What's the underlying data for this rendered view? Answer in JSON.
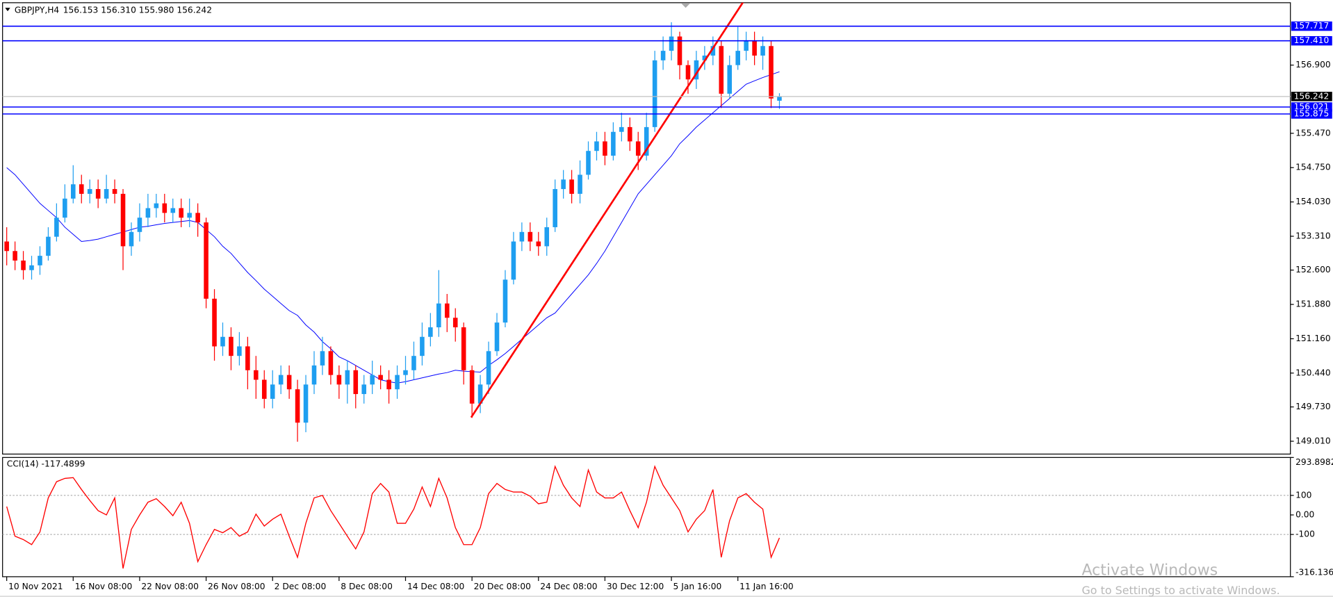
{
  "chart_data": [
    {
      "type": "candlestick",
      "title": "GBPJPY,H4",
      "quote": "156.153 156.310 155.980 156.242",
      "open": [
        153.2,
        153.0,
        152.8,
        152.6,
        152.7,
        152.9,
        153.3,
        153.7,
        154.1,
        154.4,
        154.2,
        154.3,
        154.1,
        154.3,
        154.2,
        153.1,
        153.4,
        153.7,
        153.9,
        154.0,
        153.8,
        153.9,
        153.7,
        153.8,
        153.6,
        152.0,
        151.0,
        151.2,
        150.8,
        151.0,
        150.5,
        150.3,
        149.9,
        150.2,
        150.4,
        150.1,
        149.4,
        150.2,
        150.6,
        150.9,
        150.4,
        150.2,
        150.5,
        150.0,
        150.2,
        150.4,
        150.3,
        150.1,
        150.4,
        150.5,
        150.8,
        151.2,
        151.4,
        151.9,
        151.6,
        151.4,
        150.5,
        149.8,
        150.2,
        150.9,
        151.5,
        152.4,
        153.2,
        153.4,
        153.2,
        153.1,
        153.5,
        154.3,
        154.5,
        154.2,
        154.6,
        155.1,
        155.3,
        155.0,
        155.5,
        155.6,
        155.3,
        155.0,
        155.6,
        157.0,
        157.2,
        157.5,
        156.9,
        156.6,
        157.0,
        157.1,
        157.3,
        156.3,
        156.9,
        157.2,
        157.4,
        157.1,
        157.3,
        156.153
      ],
      "high": [
        153.5,
        153.2,
        153.0,
        152.9,
        153.1,
        153.5,
        154.0,
        154.4,
        154.8,
        154.6,
        154.5,
        154.5,
        154.6,
        154.5,
        154.3,
        153.6,
        154.0,
        154.2,
        154.2,
        154.2,
        154.1,
        154.1,
        154.1,
        154.0,
        153.7,
        152.2,
        151.5,
        151.4,
        151.3,
        151.2,
        150.8,
        150.5,
        150.5,
        150.6,
        150.6,
        150.3,
        150.4,
        150.9,
        151.2,
        151.0,
        150.6,
        150.7,
        150.6,
        150.4,
        150.7,
        150.6,
        150.5,
        150.6,
        150.8,
        151.1,
        151.5,
        151.7,
        152.6,
        152.1,
        151.8,
        151.5,
        150.6,
        150.4,
        151.1,
        151.7,
        152.6,
        153.4,
        153.6,
        153.6,
        153.4,
        153.7,
        154.5,
        154.7,
        154.7,
        154.9,
        155.3,
        155.5,
        155.5,
        155.7,
        155.9,
        155.8,
        155.5,
        155.9,
        157.2,
        157.5,
        157.8,
        157.6,
        157.0,
        157.2,
        157.3,
        157.5,
        157.4,
        157.1,
        157.7,
        157.6,
        157.6,
        157.5,
        157.4,
        156.31
      ],
      "low": [
        152.7,
        152.6,
        152.4,
        152.4,
        152.5,
        152.8,
        153.2,
        153.6,
        154.0,
        154.0,
        154.0,
        153.9,
        154.0,
        154.0,
        152.6,
        152.9,
        153.2,
        153.5,
        153.7,
        153.6,
        153.6,
        153.5,
        153.5,
        153.3,
        151.8,
        150.7,
        150.8,
        150.5,
        150.6,
        150.1,
        149.9,
        149.7,
        149.7,
        150.0,
        149.9,
        149.0,
        149.2,
        150.0,
        150.4,
        150.2,
        149.9,
        149.8,
        149.7,
        149.8,
        150.0,
        150.1,
        149.8,
        149.9,
        150.2,
        150.3,
        150.6,
        151.0,
        151.2,
        151.3,
        151.1,
        150.2,
        149.5,
        149.6,
        150.0,
        150.8,
        151.4,
        152.3,
        153.0,
        153.0,
        152.9,
        152.9,
        153.4,
        154.1,
        154.0,
        154.0,
        154.5,
        154.9,
        154.8,
        154.9,
        155.3,
        155.1,
        154.7,
        154.9,
        155.5,
        156.8,
        157.0,
        156.6,
        156.3,
        156.4,
        156.8,
        156.9,
        156.0,
        156.2,
        156.8,
        157.0,
        156.9,
        156.8,
        156.0,
        155.98
      ],
      "close": [
        153.0,
        152.8,
        152.6,
        152.7,
        152.9,
        153.3,
        153.7,
        154.1,
        154.4,
        154.2,
        154.3,
        154.1,
        154.3,
        154.2,
        153.1,
        153.4,
        153.7,
        153.9,
        154.0,
        153.8,
        153.9,
        153.7,
        153.8,
        153.6,
        152.0,
        151.0,
        151.2,
        150.8,
        151.0,
        150.5,
        150.3,
        149.9,
        150.2,
        150.4,
        150.1,
        149.4,
        150.2,
        150.6,
        150.9,
        150.4,
        150.2,
        150.5,
        150.0,
        150.2,
        150.4,
        150.3,
        150.1,
        150.4,
        150.5,
        150.8,
        151.2,
        151.4,
        151.9,
        151.6,
        151.4,
        150.5,
        149.8,
        150.2,
        150.9,
        151.5,
        152.4,
        153.2,
        153.4,
        153.2,
        153.1,
        153.5,
        154.3,
        154.5,
        154.2,
        154.6,
        155.1,
        155.3,
        155.0,
        155.5,
        155.6,
        155.3,
        155.0,
        155.6,
        157.0,
        157.2,
        157.5,
        156.9,
        156.6,
        157.0,
        157.1,
        157.3,
        156.3,
        156.9,
        157.2,
        157.4,
        157.1,
        157.3,
        156.2,
        156.242
      ],
      "color_up": "#1e9ef0",
      "color_down": "#ff0000",
      "moving_average": {
        "color": "#0000ff",
        "values": [
          154.75,
          154.6,
          154.4,
          154.2,
          154.0,
          153.85,
          153.7,
          153.5,
          153.35,
          153.2,
          153.22,
          153.25,
          153.3,
          153.35,
          153.4,
          153.45,
          153.5,
          153.52,
          153.55,
          153.58,
          153.6,
          153.62,
          153.64,
          153.6,
          153.45,
          153.3,
          153.1,
          152.95,
          152.75,
          152.55,
          152.38,
          152.2,
          152.05,
          151.9,
          151.75,
          151.65,
          151.45,
          151.3,
          151.1,
          150.95,
          150.78,
          150.7,
          150.6,
          150.5,
          150.4,
          150.3,
          150.26,
          150.23,
          150.26,
          150.3,
          150.34,
          150.38,
          150.42,
          150.45,
          150.5,
          150.48,
          150.47,
          150.46,
          150.6,
          150.72,
          150.85,
          151.0,
          151.15,
          151.3,
          151.45,
          151.6,
          151.7,
          151.9,
          152.1,
          152.3,
          152.5,
          152.74,
          153.0,
          153.3,
          153.6,
          153.9,
          154.2,
          154.4,
          154.6,
          154.8,
          155.0,
          155.25,
          155.42,
          155.6,
          155.75,
          155.9,
          156.05,
          156.2,
          156.35,
          156.5,
          156.57,
          156.64,
          156.7,
          156.76
        ]
      },
      "hlines": [
        {
          "value": 157.717,
          "color": "#0000ff"
        },
        {
          "value": 157.41,
          "label": "157.410",
          "color": "#0000ff"
        },
        {
          "value": 156.021,
          "color": "#0000ff"
        },
        {
          "value": 155.875,
          "color": "#0000ff"
        }
      ],
      "last_price_line": true,
      "last_price_color": "#c0c0c0",
      "trendline": {
        "x": [
          55.9,
          88.7
        ],
        "y": [
          149.51,
          158.24
        ],
        "color": "#ff0000"
      },
      "xlim": [
        -0.5,
        154.5
      ],
      "xticks": [
        {
          "value": 0,
          "label": "10 Nov 2021"
        },
        {
          "value": 8,
          "label": "16 Nov 08:00"
        },
        {
          "value": 16,
          "label": "22 Nov 08:00"
        },
        {
          "value": 24,
          "label": "26 Nov 08:00"
        },
        {
          "value": 32,
          "label": "2 Dec 08:00"
        },
        {
          "value": 40,
          "label": "8 Dec 08:00"
        },
        {
          "value": 48,
          "label": "14 Dec 08:00"
        },
        {
          "value": 56,
          "label": "20 Dec 08:00"
        },
        {
          "value": 64,
          "label": "24 Dec 08:00"
        },
        {
          "value": 72,
          "label": "30 Dec 12:00"
        },
        {
          "value": 80,
          "label": "5 Jan 16:00"
        },
        {
          "value": 88,
          "label": "11 Jan 16:00"
        }
      ],
      "ylim": [
        148.741,
        158.209
      ],
      "yticks": [
        {
          "value": 149.01,
          "label": "149.010"
        },
        {
          "value": 149.73,
          "label": "149.730"
        },
        {
          "value": 150.44,
          "label": "150.440"
        },
        {
          "value": 151.16,
          "label": "151.160"
        },
        {
          "value": 151.88,
          "label": "151.880"
        },
        {
          "value": 152.6,
          "label": "152.600"
        },
        {
          "value": 153.31,
          "label": "153.310"
        },
        {
          "value": 154.03,
          "label": "154.030"
        },
        {
          "value": 154.75,
          "label": "154.750"
        },
        {
          "value": 155.47,
          "label": "155.470"
        },
        {
          "value": 156.9,
          "label": "156.900"
        }
      ]
    },
    {
      "type": "line",
      "title": "CCI(14) -117.4899",
      "color": "#ff0000",
      "values": [
        43,
        -109,
        -126,
        -152,
        -87,
        87,
        170,
        187,
        191,
        130,
        74,
        22,
        0,
        87,
        -274,
        -74,
        0,
        65,
        83,
        43,
        -4,
        65,
        -43,
        -239,
        -152,
        -74,
        -91,
        -65,
        -109,
        -87,
        4,
        -57,
        -22,
        4,
        -109,
        -217,
        -43,
        87,
        100,
        22,
        -43,
        -109,
        -174,
        -87,
        109,
        161,
        117,
        -43,
        -43,
        30,
        143,
        43,
        187,
        87,
        -65,
        -152,
        -152,
        -65,
        109,
        161,
        130,
        117,
        117,
        96,
        57,
        65,
        248,
        152,
        87,
        43,
        230,
        117,
        87,
        87,
        117,
        22,
        -65,
        65,
        248,
        152,
        87,
        22,
        -87,
        -22,
        22,
        130,
        -217,
        -30,
        87,
        109,
        65,
        30,
        -217,
        -117.4899
      ],
      "xlim": [
        -0.5,
        154.5
      ],
      "ylim": [
        -316.1363,
        293.8982
      ],
      "yticks": [
        293.8982,
        100,
        {
          "value": 0,
          "label": "0.00"
        },
        -100,
        -316.1363
      ],
      "dashed_levels": [
        100,
        -100
      ]
    }
  ],
  "watermark": {
    "title": "Activate Windows",
    "subtitle": "Go to Settings to activate Windows."
  }
}
